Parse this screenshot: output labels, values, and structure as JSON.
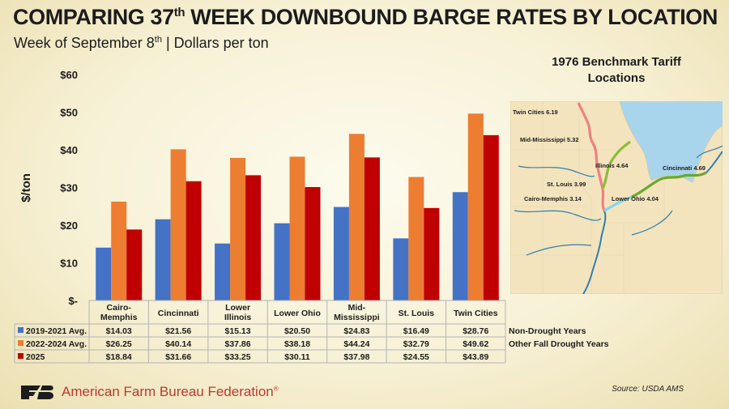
{
  "header": {
    "title_pre": "COMPARING 37",
    "title_sup": "th",
    "title_post": " WEEK DOWNBOUND BARGE RATES BY LOCATION",
    "subtitle_pre": "Week of September 8",
    "subtitle_sup": "th",
    "subtitle_post": " | Dollars per ton"
  },
  "chart_data": {
    "type": "bar",
    "categories": [
      [
        "Cairo-",
        "Memphis"
      ],
      [
        "Cincinnati"
      ],
      [
        "Lower",
        "Illinois"
      ],
      [
        "Lower Ohio"
      ],
      [
        "Mid-",
        "Mississippi"
      ],
      [
        "St. Louis"
      ],
      [
        "Twin Cities"
      ]
    ],
    "series": [
      {
        "name": "2019-2021 Avg.",
        "color": "#4472c4",
        "values": [
          14.03,
          21.56,
          15.13,
          20.5,
          24.83,
          16.49,
          28.76
        ],
        "labels": [
          "$14.03",
          "$21.56",
          "$15.13",
          "$20.50",
          "$24.83",
          "$16.49",
          "$28.76"
        ],
        "note": "Non-Drought Years"
      },
      {
        "name": "2022-2024 Avg.",
        "color": "#ed7d31",
        "values": [
          26.25,
          40.14,
          37.86,
          38.18,
          44.24,
          32.79,
          49.62
        ],
        "labels": [
          "$26.25",
          "$40.14",
          "$37.86",
          "$38.18",
          "$44.24",
          "$32.79",
          "$49.62"
        ],
        "note": "Other Fall Drought Years"
      },
      {
        "name": "2025",
        "color": "#c00000",
        "values": [
          18.84,
          31.66,
          33.25,
          30.11,
          37.98,
          24.55,
          43.89
        ],
        "labels": [
          "$18.84",
          "$31.66",
          "$33.25",
          "$30.11",
          "$37.98",
          "$24.55",
          "$43.89"
        ],
        "note": ""
      }
    ],
    "ylabel": "$/ton",
    "ylim": [
      0,
      60
    ],
    "yticks": [
      0,
      10,
      20,
      30,
      40,
      50,
      60
    ],
    "ytick_labels": [
      "$-",
      "$10",
      "$20",
      "$30",
      "$40",
      "$50",
      "$60"
    ],
    "grid": false,
    "legend": "data table below chart"
  },
  "map": {
    "title_line1": "1976 Benchmark Tariff",
    "title_line2": "Locations",
    "labels": [
      "Twin Cities 6.19",
      "Mid-Mississippi 5.32",
      "Illinois 4.64",
      "Cincinnati 4.69",
      "St. Louis 3.99",
      "Cairo-Memphis 3.14",
      "Lower Ohio 4.04"
    ]
  },
  "footer": {
    "logo_text": "FB",
    "organization": "American Farm Bureau Federation",
    "registered": "®",
    "source": "Source: USDA AMS"
  }
}
